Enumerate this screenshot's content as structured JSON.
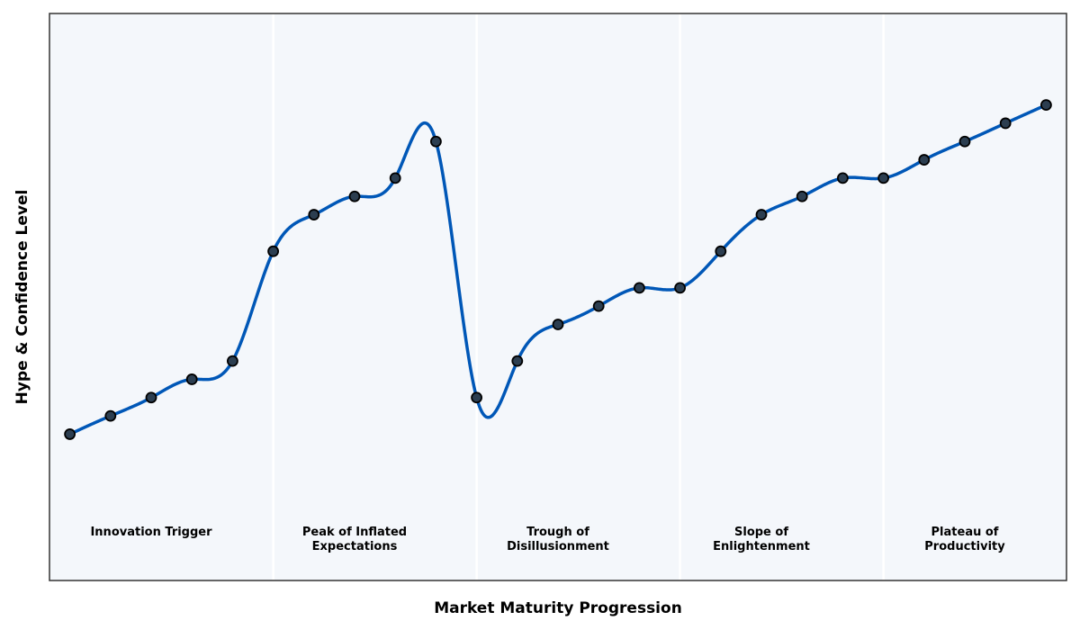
{
  "chart_data": {
    "type": "line",
    "title": "",
    "xlabel": "Market Maturity Progression",
    "ylabel": "Hype & Confidence Level",
    "xlim": [
      -0.5,
      24.5
    ],
    "ylim": [
      0,
      31
    ],
    "grid": false,
    "ticks_visible": false,
    "x": [
      0,
      1,
      2,
      3,
      4,
      5,
      6,
      7,
      8,
      9,
      10,
      11,
      12,
      13,
      14,
      15,
      16,
      17,
      18,
      19,
      20,
      21,
      22,
      23,
      24
    ],
    "series": [
      {
        "values": [
          8,
          9,
          10,
          11,
          12,
          18,
          20,
          21,
          22,
          24,
          10,
          12,
          14,
          15,
          16,
          16,
          18,
          20,
          21,
          22,
          22,
          23,
          24,
          25,
          26
        ]
      }
    ],
    "phase_boundaries": [
      5,
      10,
      15,
      20
    ],
    "phases": [
      {
        "lines": [
          "Innovation Trigger"
        ],
        "x": 2
      },
      {
        "lines": [
          "Peak of Inflated",
          "Expectations"
        ],
        "x": 7
      },
      {
        "lines": [
          "Trough of",
          "Disillusionment"
        ],
        "x": 12
      },
      {
        "lines": [
          "Slope of",
          "Enlightenment"
        ],
        "x": 17
      },
      {
        "lines": [
          "Plateau of",
          "Productivity"
        ],
        "x": 22
      }
    ],
    "colors": {
      "line": "#0057b7",
      "marker": "#2c3e50",
      "marker_edge": "#000000",
      "background": "#f4f7fb",
      "separator": "#ffffff"
    }
  }
}
